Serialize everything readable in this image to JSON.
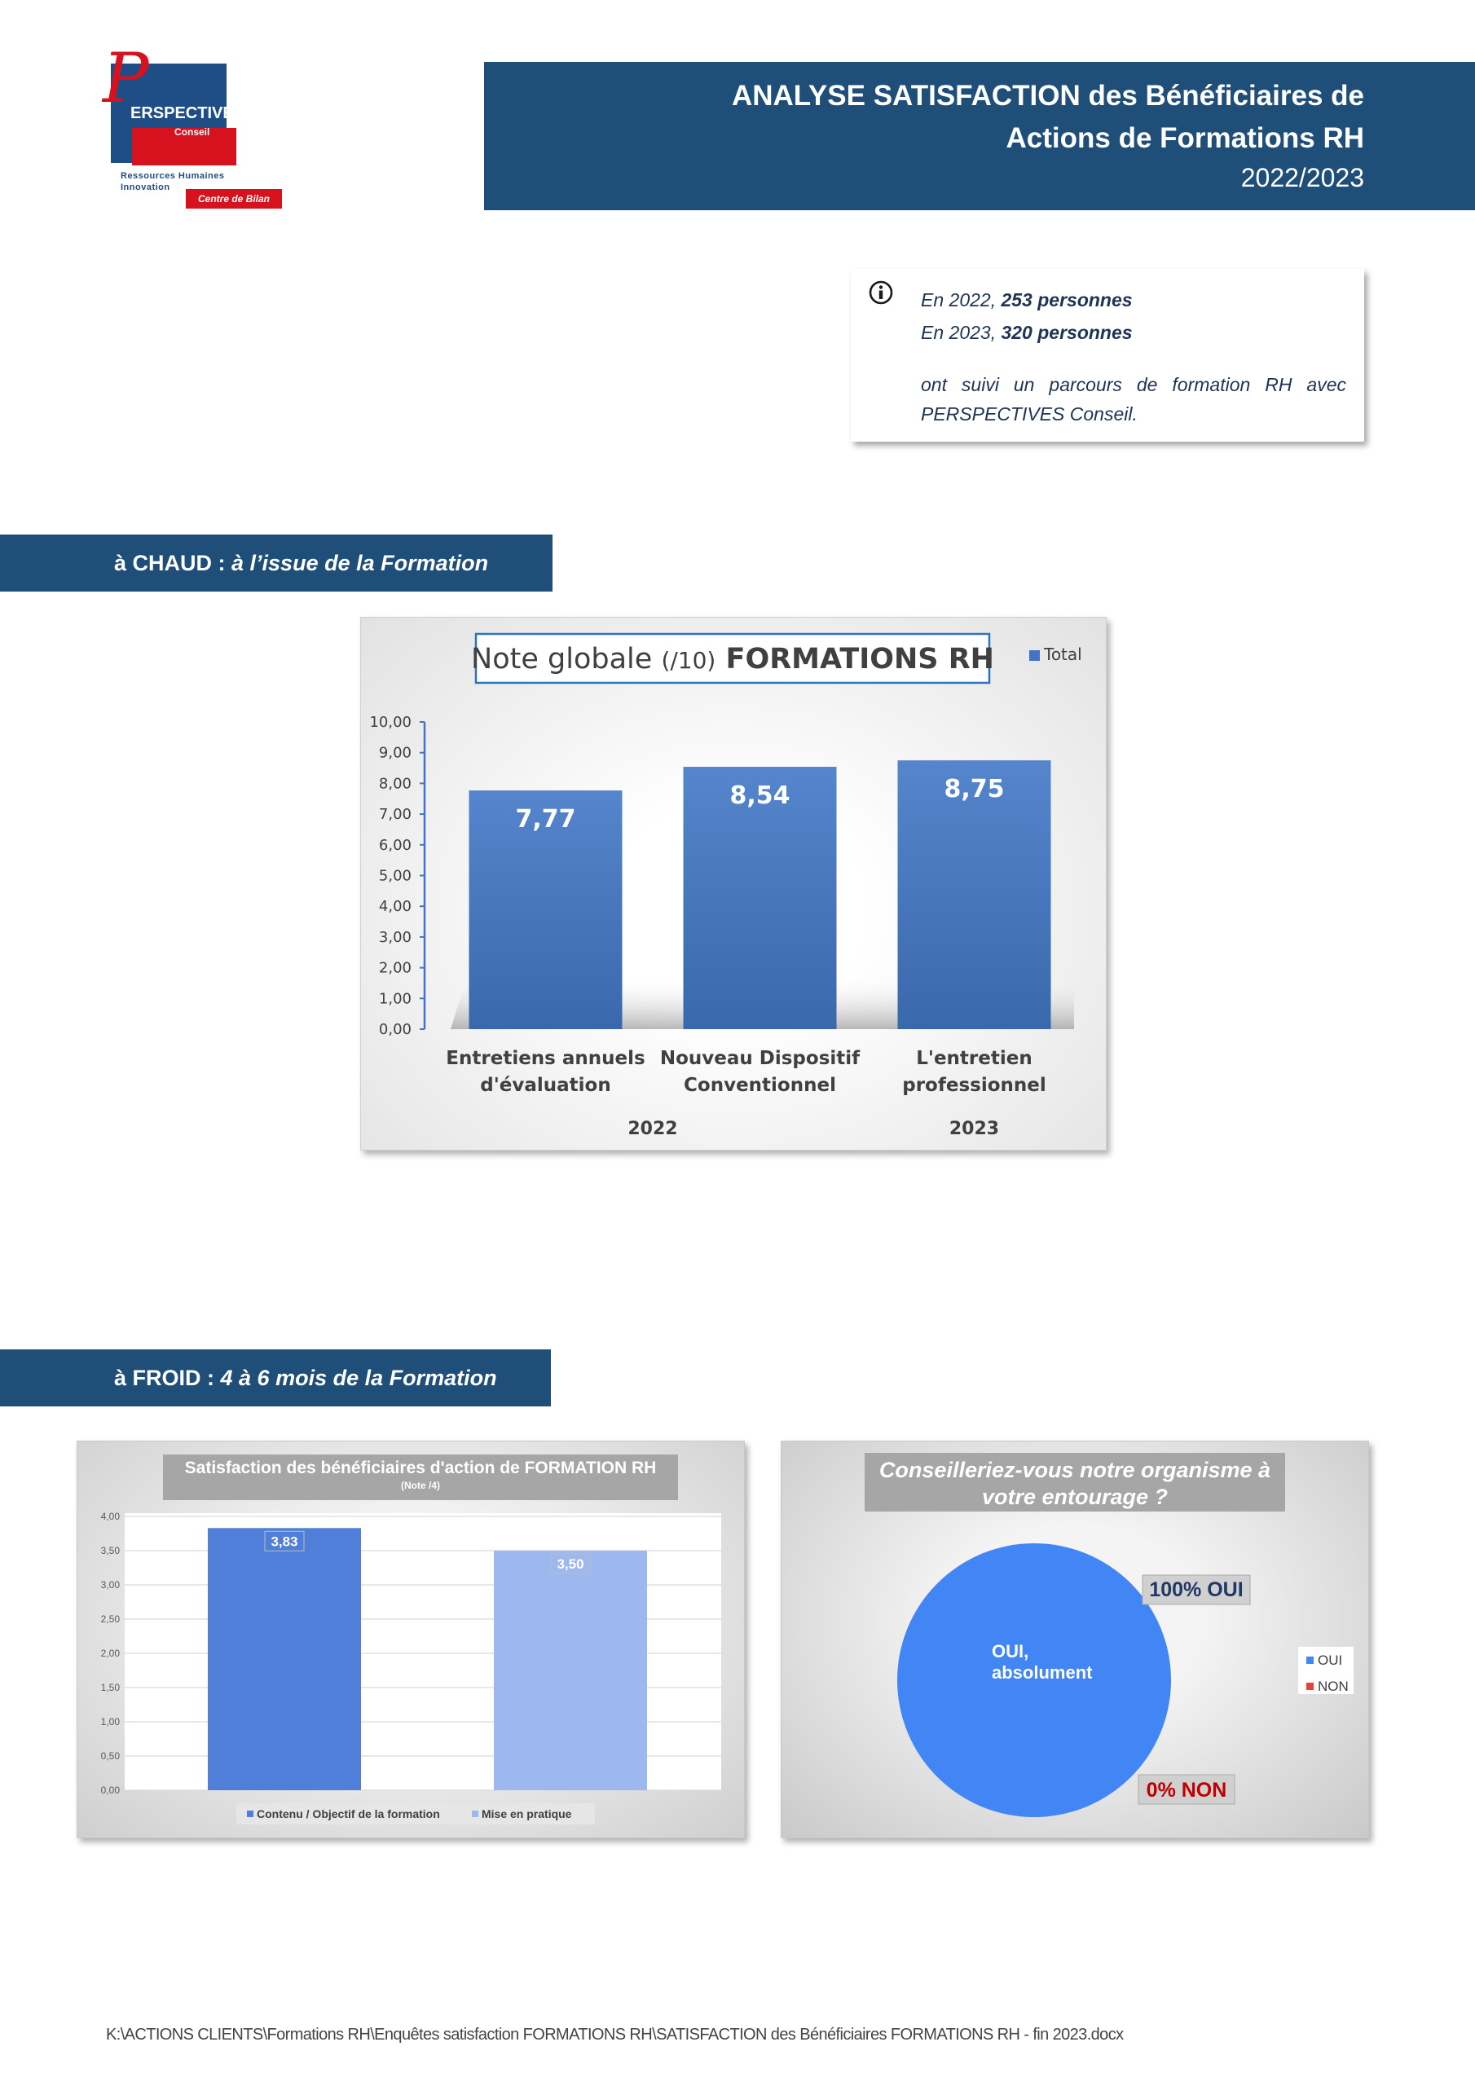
{
  "logo": {
    "brand": "ERSPECTIVES",
    "initial": "P",
    "sub": "Conseil",
    "tagline1": "Ressources Humaines",
    "tagline2": "Innovation",
    "centre": "Centre de Bilan"
  },
  "header": {
    "title_line1": "ANALYSE SATISFACTION des Bénéficiaires de",
    "title_line2": "Actions de Formations RH",
    "years": "2022/2023"
  },
  "info": {
    "line1_prefix": "En 2022, ",
    "line1_bold": "253 personnes",
    "line2_prefix": "En 2023, ",
    "line2_bold": "320 personnes",
    "paragraph": "ont suivi un parcours de formation RH avec PERSPECTIVES Conseil."
  },
  "sections": {
    "chaud_lead": "à CHAUD : ",
    "chaud_italic": "à l’issue de la Formation",
    "froid_lead": "à FROID : ",
    "froid_italic": "4 à 6 mois de la Formation"
  },
  "chart_data": [
    {
      "type": "bar",
      "title_main": "Note globale ",
      "title_paren": "(/10)",
      "title_bold": " FORMATIONS RH",
      "legend": "Total",
      "categories": [
        "Entretiens annuels d'évaluation",
        "Nouveau Dispositif Conventionnel",
        "L'entretien professionnel"
      ],
      "category_lines": [
        [
          "Entretiens annuels",
          "d'évaluation"
        ],
        [
          "Nouveau Dispositif",
          "Conventionnel"
        ],
        [
          "L'entretien",
          "professionnel"
        ]
      ],
      "values": [
        7.77,
        8.54,
        8.75
      ],
      "value_labels": [
        "7,77",
        "8,54",
        "8,75"
      ],
      "group_labels": [
        "2022",
        "2023"
      ],
      "yticks": [
        "0,00",
        "1,00",
        "2,00",
        "3,00",
        "4,00",
        "5,00",
        "6,00",
        "7,00",
        "8,00",
        "9,00",
        "10,00"
      ],
      "ylim": [
        0,
        10
      ],
      "color": "#4472c4"
    },
    {
      "type": "bar",
      "title": "Satisfaction des bénéficiaires d'action de FORMATION RH",
      "subtitle": "(Note /4)",
      "series": [
        {
          "name": "Contenu / Objectif de la formation",
          "values": [
            3.83
          ],
          "label": "3,83",
          "color": "#4f7fd8"
        },
        {
          "name": "Mise en pratique",
          "values": [
            3.5
          ],
          "label": "3,50",
          "color": "#9db7ef"
        }
      ],
      "yticks": [
        "0,00",
        "0,50",
        "1,00",
        "1,50",
        "2,00",
        "2,50",
        "3,00",
        "3,50",
        "4,00"
      ],
      "ylim": [
        0,
        4
      ],
      "grid": true,
      "legend_position": "bottom"
    },
    {
      "type": "pie",
      "title_line1": "Conseilleriez-vous notre organisme à",
      "title_line2": "votre entourage ?",
      "slices": [
        {
          "name": "OUI",
          "value": 100,
          "color": "#4285f4"
        },
        {
          "name": "NON",
          "value": 0,
          "color": "#ea4335"
        }
      ],
      "inner_label_line1": "OUI,",
      "inner_label_line2": "absolument",
      "callout_oui": "100% OUI",
      "callout_non": "0% NON",
      "legend_position": "right"
    }
  ],
  "footer": "K:\\ACTIONS CLIENTS\\Formations RH\\Enquêtes satisfaction FORMATIONS RH\\SATISFACTION des Bénéficiaires FORMATIONS RH - fin 2023.docx"
}
